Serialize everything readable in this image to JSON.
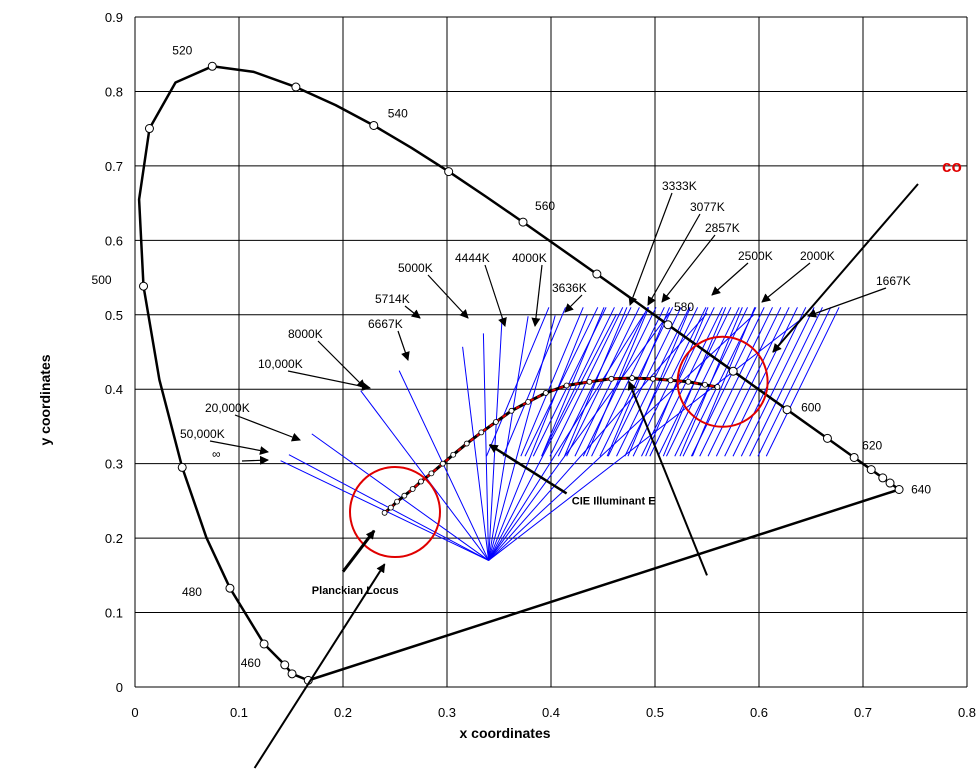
{
  "chart_data": {
    "type": "scatter",
    "title": "",
    "xlabel": "x coordinates",
    "ylabel": "y coordinates",
    "xlim": [
      0,
      0.8
    ],
    "ylim": [
      0,
      0.9
    ],
    "x_ticks": [
      "0",
      "0.1",
      "0.2",
      "0.3",
      "0.4",
      "0.5",
      "0.6",
      "0.7",
      "0.8"
    ],
    "y_ticks": [
      "0",
      "0.1",
      "0.2",
      "0.3",
      "0.4",
      "0.5",
      "0.6",
      "0.7",
      "0.8",
      "0.9"
    ],
    "grid": true,
    "colors": {
      "locus": "#000000",
      "isotherm": "#0000ff",
      "planck_dash": "#e00000",
      "circle": "#e00000"
    },
    "spectral_locus": [
      [
        0.1666,
        0.0089
      ],
      [
        0.151,
        0.0177
      ],
      [
        0.144,
        0.0297
      ],
      [
        0.1241,
        0.0578
      ],
      [
        0.0913,
        0.1327
      ],
      [
        0.0687,
        0.2007
      ],
      [
        0.0454,
        0.295
      ],
      [
        0.0235,
        0.4127
      ],
      [
        0.0082,
        0.5384
      ],
      [
        0.0039,
        0.6548
      ],
      [
        0.0139,
        0.7502
      ],
      [
        0.0389,
        0.812
      ],
      [
        0.0743,
        0.8338
      ],
      [
        0.1142,
        0.8262
      ],
      [
        0.1547,
        0.8059
      ],
      [
        0.1929,
        0.7816
      ],
      [
        0.2296,
        0.7543
      ],
      [
        0.2658,
        0.7243
      ],
      [
        0.3016,
        0.6923
      ],
      [
        0.3373,
        0.6589
      ],
      [
        0.3731,
        0.6245
      ],
      [
        0.4087,
        0.5896
      ],
      [
        0.4441,
        0.5547
      ],
      [
        0.4788,
        0.5202
      ],
      [
        0.5125,
        0.4866
      ],
      [
        0.5448,
        0.4544
      ],
      [
        0.5752,
        0.4242
      ],
      [
        0.6029,
        0.3965
      ],
      [
        0.627,
        0.3725
      ],
      [
        0.6482,
        0.3514
      ],
      [
        0.6658,
        0.334
      ],
      [
        0.6801,
        0.3197
      ],
      [
        0.6915,
        0.3083
      ],
      [
        0.7006,
        0.2993
      ],
      [
        0.7079,
        0.292
      ],
      [
        0.714,
        0.2859
      ],
      [
        0.719,
        0.2809
      ],
      [
        0.723,
        0.277
      ],
      [
        0.726,
        0.274
      ],
      [
        0.7283,
        0.2717
      ],
      [
        0.73,
        0.27
      ],
      [
        0.7347,
        0.2653
      ]
    ],
    "spectral_markers": [
      [
        0.1666,
        0.0089
      ],
      [
        0.151,
        0.0177
      ],
      [
        0.144,
        0.0297
      ],
      [
        0.1241,
        0.0578
      ],
      [
        0.0913,
        0.1327
      ],
      [
        0.0454,
        0.295
      ],
      [
        0.0082,
        0.5384
      ],
      [
        0.0139,
        0.7502
      ],
      [
        0.0743,
        0.8338
      ],
      [
        0.1547,
        0.8059
      ],
      [
        0.2296,
        0.7543
      ],
      [
        0.3016,
        0.6923
      ],
      [
        0.3731,
        0.6245
      ],
      [
        0.4441,
        0.5547
      ],
      [
        0.5125,
        0.4866
      ],
      [
        0.5752,
        0.4242
      ],
      [
        0.627,
        0.3725
      ],
      [
        0.6658,
        0.334
      ],
      [
        0.6915,
        0.3083
      ],
      [
        0.7079,
        0.292
      ],
      [
        0.719,
        0.2809
      ],
      [
        0.726,
        0.274
      ],
      [
        0.7347,
        0.2653
      ]
    ],
    "wavelength_labels": [
      {
        "text": "460",
        "x": 0.144,
        "y": 0.0297
      },
      {
        "text": "480",
        "x": 0.0913,
        "y": 0.1327
      },
      {
        "text": "500",
        "x": 0.0082,
        "y": 0.5384
      },
      {
        "text": "520",
        "x": 0.0743,
        "y": 0.8338
      },
      {
        "text": "540",
        "x": 0.2296,
        "y": 0.7543
      },
      {
        "text": "560",
        "x": 0.3731,
        "y": 0.6245
      },
      {
        "text": "580",
        "x": 0.5125,
        "y": 0.4866
      },
      {
        "text": "600",
        "x": 0.627,
        "y": 0.3725
      },
      {
        "text": "620",
        "x": 0.6915,
        "y": 0.3083
      },
      {
        "text": "640",
        "x": 0.7347,
        "y": 0.2653
      }
    ],
    "planckian_locus": [
      [
        0.24,
        0.234
      ],
      [
        0.246,
        0.241
      ],
      [
        0.252,
        0.249
      ],
      [
        0.259,
        0.257
      ],
      [
        0.267,
        0.266
      ],
      [
        0.275,
        0.276
      ],
      [
        0.285,
        0.287
      ],
      [
        0.296,
        0.3
      ],
      [
        0.306,
        0.312
      ],
      [
        0.319,
        0.327
      ],
      [
        0.333,
        0.342
      ],
      [
        0.347,
        0.356
      ],
      [
        0.362,
        0.371
      ],
      [
        0.378,
        0.383
      ],
      [
        0.395,
        0.395
      ],
      [
        0.415,
        0.405
      ],
      [
        0.437,
        0.41
      ],
      [
        0.458,
        0.414
      ],
      [
        0.478,
        0.415
      ],
      [
        0.498,
        0.414
      ],
      [
        0.515,
        0.412
      ],
      [
        0.532,
        0.41
      ],
      [
        0.548,
        0.406
      ],
      [
        0.56,
        0.403
      ]
    ],
    "isotherms": [
      {
        "label": "∞",
        "x": 0.14,
        "y": 0.304
      },
      {
        "label": "50,000K",
        "x": 0.148,
        "y": 0.312
      },
      {
        "label": "20,000K",
        "x": 0.17,
        "y": 0.34
      },
      {
        "label": "10,000K",
        "x": 0.217,
        "y": 0.398
      },
      {
        "label": "8000K",
        "x": 0.254,
        "y": 0.425
      },
      {
        "label": "6667K",
        "x": 0.315,
        "y": 0.457
      },
      {
        "label": "5714K",
        "x": 0.335,
        "y": 0.475
      },
      {
        "label": "5000K",
        "x": 0.353,
        "y": 0.497
      },
      {
        "label": "4444K",
        "x": 0.378,
        "y": 0.498
      },
      {
        "label": "4000K",
        "x": 0.404,
        "y": 0.499
      },
      {
        "label": "3636K",
        "x": 0.435,
        "y": 0.5
      },
      {
        "label": "3333K",
        "x": 0.463,
        "y": 0.501
      },
      {
        "label": "3077K",
        "x": 0.49,
        "y": 0.502
      },
      {
        "label": "2857K",
        "x": 0.514,
        "y": 0.503
      },
      {
        "label": "2500K",
        "x": 0.55,
        "y": 0.502
      },
      {
        "label": "2000K",
        "x": 0.595,
        "y": 0.5
      },
      {
        "label": "1667K",
        "x": 0.645,
        "y": 0.499
      }
    ],
    "convergence_point": [
      0.34,
      0.17
    ],
    "isotherm_lower_bound": 0.31,
    "cie_illuminant_e": [
      0.3333,
      0.3333
    ],
    "annotations": {
      "cie_e": "CIE Illuminant E",
      "planckian": "Planckian Locus",
      "cut_red": "co"
    }
  }
}
